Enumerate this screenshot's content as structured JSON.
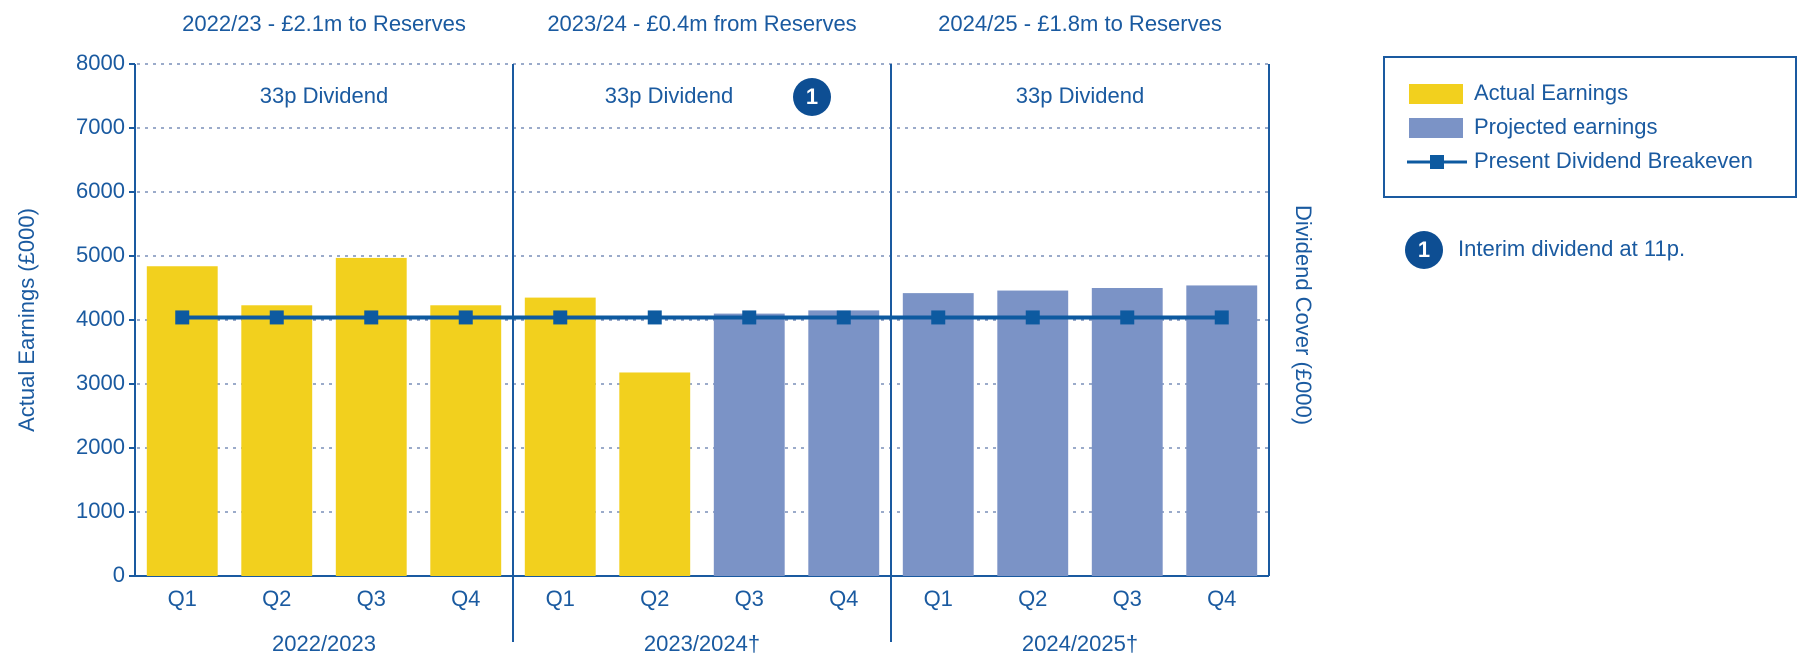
{
  "chart_data": {
    "type": "bar",
    "period_titles": [
      "2022/23 - £2.1m to Reserves",
      "2023/24 - £0.4m from Reserves",
      "2024/25 - £1.8m to Reserves"
    ],
    "dividend_labels": [
      "33p Dividend",
      "33p Dividend",
      "33p Dividend"
    ],
    "dividend_badge": "1",
    "categories": [
      "Q1",
      "Q2",
      "Q3",
      "Q4",
      "Q1",
      "Q2",
      "Q3",
      "Q4",
      "Q1",
      "Q2",
      "Q3",
      "Q4"
    ],
    "group_labels": [
      "2022/2023",
      "2023/2024†",
      "2024/2025†"
    ],
    "y_label": "Actual Earnings (£000)",
    "y2_label": "Dividend Cover (£000)",
    "series": [
      {
        "name": "Actual Earnings",
        "type": "bar",
        "color": "#f2d01e",
        "values": [
          4840,
          4230,
          4970,
          4230,
          4350,
          3180,
          null,
          null,
          null,
          null,
          null,
          null
        ]
      },
      {
        "name": "Projected earnings",
        "type": "bar",
        "color": "#7b93c6",
        "values": [
          null,
          null,
          null,
          null,
          null,
          null,
          4100,
          4150,
          4420,
          4460,
          4500,
          4540
        ]
      },
      {
        "name": "Present Dividend Breakeven",
        "type": "line",
        "color": "#0d5aa0",
        "values": [
          4040,
          4040,
          4040,
          4040,
          4040,
          4040,
          4040,
          4040,
          4040,
          4040,
          4040,
          4040
        ]
      }
    ],
    "ylim": [
      0,
      8000
    ],
    "yticks": [
      0,
      1000,
      2000,
      3000,
      4000,
      5000,
      6000,
      7000,
      8000
    ],
    "grid": true,
    "note": {
      "badge": "1",
      "text": "Interim dividend at 11p."
    }
  }
}
